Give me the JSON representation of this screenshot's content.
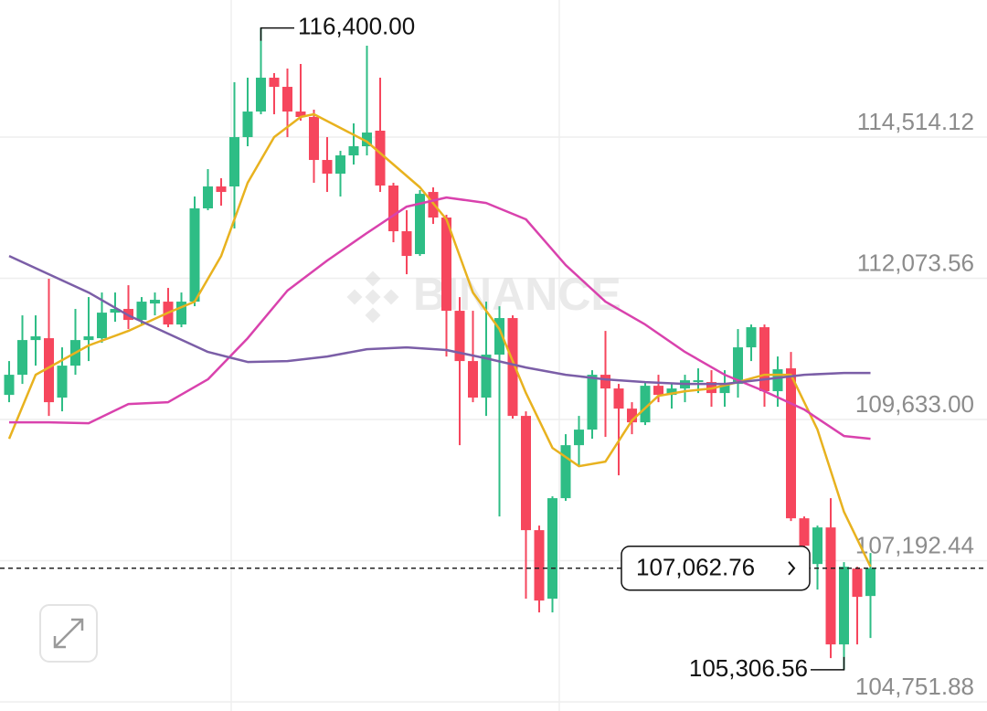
{
  "chart_data": {
    "type": "candlestick",
    "watermark": "BINANCE",
    "up_color": "#2ebd85",
    "down_color": "#f6465d",
    "grid": true,
    "ylim": [
      104594,
      116884
    ],
    "yticks": [
      {
        "value": 114514.12,
        "label": "114,514.12"
      },
      {
        "value": 112073.56,
        "label": "112,073.56"
      },
      {
        "value": 109633.0,
        "label": "109,633.00"
      },
      {
        "value": 107192.44,
        "label": "107,192.44"
      },
      {
        "value": 104751.88,
        "label": "104,751.88"
      }
    ],
    "open": [
      110058,
      110406,
      111006,
      111038,
      110011,
      110564,
      111006,
      111038,
      111480,
      111544,
      111354,
      111638,
      111670,
      111275,
      111670,
      113282,
      113661,
      113661,
      114514,
      114956,
      115541,
      115383,
      114956,
      114862,
      114119,
      113882,
      114198,
      114356,
      114625,
      113677,
      112887,
      112492,
      113566,
      113124,
      111512,
      110643,
      110011,
      110754,
      111386,
      109695,
      107720,
      106535,
      108273,
      109189,
      109458,
      110406,
      110169,
      109821,
      109584,
      110216,
      110058,
      110169,
      110280,
      110280,
      110090,
      110248,
      110880,
      111228,
      110122,
      110517,
      107925,
      107135,
      107767,
      105745,
      107056,
      106582
    ],
    "high": [
      110643,
      111433,
      111433,
      112065,
      110880,
      111544,
      111749,
      111828,
      111828,
      111954,
      111749,
      111828,
      111907,
      111828,
      113487,
      113961,
      113803,
      115462,
      115541,
      116400,
      115620,
      115699,
      115778,
      114988,
      114514,
      114277,
      114751,
      116094,
      115541,
      113724,
      113250,
      113598,
      113645,
      113171,
      111749,
      111512,
      111670,
      111591,
      111433,
      109774,
      107799,
      108305,
      109379,
      109695,
      110485,
      111164,
      110248,
      109932,
      110280,
      110406,
      110248,
      110406,
      110517,
      110485,
      110485,
      111196,
      111275,
      111275,
      110722,
      110801,
      107957,
      107799,
      108273,
      107167,
      107088,
      107325
    ],
    "low": [
      109932,
      110248,
      110564,
      109695,
      109774,
      110406,
      110643,
      110959,
      111322,
      111196,
      111275,
      111433,
      111228,
      111228,
      111591,
      113250,
      113329,
      112934,
      114356,
      114909,
      114909,
      114514,
      114798,
      113724,
      113566,
      113487,
      114040,
      114198,
      113566,
      112697,
      112144,
      112460,
      113013,
      110722,
      109189,
      109932,
      109695,
      107957,
      109648,
      106535,
      106298,
      106298,
      108226,
      108826,
      109300,
      109332,
      108668,
      109379,
      109537,
      109932,
      109821,
      109932,
      110090,
      109853,
      109853,
      110011,
      110643,
      109853,
      109853,
      107878,
      107088,
      106693,
      105508,
      105306.56,
      105745,
      105856
    ],
    "close": [
      110406,
      111006,
      111070,
      109932,
      110564,
      111006,
      111070,
      111480,
      111544,
      111354,
      111670,
      111702,
      111275,
      111670,
      113282,
      113661,
      113566,
      114514,
      114956,
      115541,
      115383,
      114956,
      114862,
      114119,
      113882,
      114198,
      114356,
      114593,
      113677,
      112887,
      112460,
      113534,
      113124,
      111512,
      110643,
      110011,
      110754,
      111386,
      109695,
      107720,
      106503,
      108273,
      109189,
      109458,
      110406,
      110169,
      109821,
      109584,
      110216,
      110058,
      110169,
      110311,
      110311,
      110090,
      110248,
      110880,
      111228,
      110122,
      110501,
      107925,
      107451,
      107767,
      105745,
      107088,
      106567,
      107062.76
    ],
    "moving_averages": [
      {
        "color": "#e8b21f",
        "x": [
          0,
          2,
          6,
          9,
          12,
          14,
          16,
          18,
          20,
          22,
          23,
          25,
          27,
          29,
          31,
          33,
          35,
          37,
          39,
          41,
          43,
          45,
          47,
          49,
          51,
          53,
          55,
          57,
          59,
          61,
          63,
          65
        ],
        "values": [
          109300,
          110406,
          110912,
          111164,
          111480,
          111670,
          112460,
          113724,
          114514,
          114862,
          114909,
          114672,
          114435,
          114040,
          113645,
          113092,
          111828,
          111196,
          110090,
          109142,
          108826,
          108905,
          109616,
          110043,
          110122,
          110169,
          110280,
          110406,
          110406,
          109458,
          108036,
          107088
        ]
      },
      {
        "color": "#d942ad",
        "x": [
          0,
          3,
          6,
          9,
          12,
          15,
          18,
          21,
          24,
          27,
          30,
          33,
          36,
          39,
          42,
          45,
          48,
          51,
          54,
          57,
          60,
          63,
          65
        ],
        "values": [
          109584,
          109584,
          109569,
          109900,
          109932,
          110327,
          111038,
          111860,
          112381,
          112855,
          113313,
          113471,
          113376,
          113092,
          112302,
          111670,
          111275,
          110801,
          110406,
          110122,
          109806,
          109347,
          109300
        ]
      },
      {
        "color": "#7b5ea7",
        "x": [
          0,
          3,
          6,
          9,
          12,
          15,
          18,
          21,
          24,
          27,
          30,
          33,
          36,
          39,
          42,
          45,
          48,
          51,
          54,
          57,
          60,
          63,
          65
        ],
        "values": [
          112460,
          112144,
          111828,
          111433,
          111117,
          110801,
          110627,
          110643,
          110722,
          110848,
          110880,
          110833,
          110690,
          110532,
          110406,
          110327,
          110280,
          110248,
          110248,
          110327,
          110406,
          110438,
          110438
        ]
      }
    ],
    "high_marker": {
      "value": 116400,
      "label": "116,400.00"
    },
    "low_marker": {
      "value": 105306.56,
      "label": "105,306.56"
    },
    "last_price": {
      "value": 107062.76,
      "label": "107,062.76"
    }
  }
}
